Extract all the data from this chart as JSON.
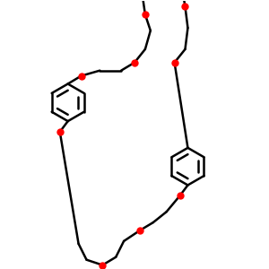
{
  "bg_color": "#ffffff",
  "bond_color": "#000000",
  "oxygen_color": "#ff0000",
  "line_width": 1.8,
  "fig_size": [
    3.0,
    3.0
  ],
  "dpi": 100
}
